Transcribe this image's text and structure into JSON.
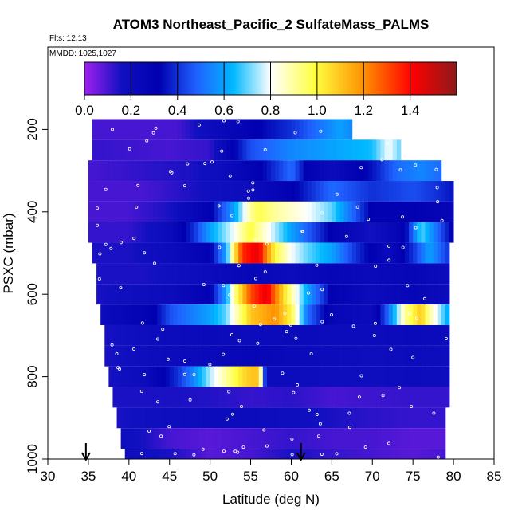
{
  "chart_data": {
    "type": "heatmap",
    "title": "ATOM3 Northeast_Pacific_2 SulfateMass_PALMS",
    "info_lines": [
      "Flts: 12,13",
      "MMDD: 1025,1027"
    ],
    "xlabel": "Latitude (deg N)",
    "ylabel": "PSXC (mbar)",
    "xlim": [
      30,
      85
    ],
    "ylim": [
      1000,
      0
    ],
    "x_ticks": [
      "30",
      "35",
      "40",
      "45",
      "50",
      "55",
      "60",
      "65",
      "70",
      "75",
      "80",
      "85"
    ],
    "y_ticks": [
      "200",
      "400",
      "600",
      "800",
      "1000"
    ],
    "colorbar": {
      "range": [
        0,
        1.6
      ],
      "ticks": [
        "0.0",
        "0.2",
        "0.4",
        "0.6",
        "0.8",
        "1.0",
        "1.2",
        "1.4"
      ]
    },
    "markers": [
      34.7,
      61.2
    ],
    "bin_height_mbar": 50,
    "layers": [
      {
        "p": 200,
        "x0": 35.5,
        "x1": 67.5,
        "pts": [
          [
            35.5,
            0.1
          ],
          [
            46,
            0.1
          ],
          [
            50,
            0.2
          ],
          [
            55,
            0.3
          ],
          [
            60,
            0.4
          ],
          [
            63,
            0.5
          ],
          [
            66,
            0.6
          ],
          [
            67.5,
            0.55
          ]
        ]
      },
      {
        "p": 250,
        "x0": 35.5,
        "x1": 73.5,
        "pts": [
          [
            35.5,
            0.12
          ],
          [
            45,
            0.1
          ],
          [
            50,
            0.12
          ],
          [
            52,
            0.25
          ],
          [
            55,
            0.45
          ],
          [
            60,
            0.55
          ],
          [
            65,
            0.6
          ],
          [
            70,
            0.65
          ],
          [
            72,
            0.8
          ],
          [
            73.5,
            0.7
          ]
        ]
      },
      {
        "p": 300,
        "x0": 35,
        "x1": 78.5,
        "pts": [
          [
            35,
            0.1
          ],
          [
            40,
            0.12
          ],
          [
            48,
            0.15
          ],
          [
            52,
            0.2
          ],
          [
            56,
            0.3
          ],
          [
            60,
            0.5
          ],
          [
            62,
            0.3
          ],
          [
            65,
            0.2
          ],
          [
            70,
            0.35
          ],
          [
            73,
            0.5
          ],
          [
            76,
            0.55
          ],
          [
            78.5,
            0.5
          ]
        ]
      },
      {
        "p": 350,
        "x0": 35,
        "x1": 80,
        "pts": [
          [
            35,
            0.1
          ],
          [
            42,
            0.1
          ],
          [
            48,
            0.15
          ],
          [
            55,
            0.2
          ],
          [
            60,
            0.3
          ],
          [
            65,
            0.5
          ],
          [
            70,
            0.4
          ],
          [
            75,
            0.45
          ],
          [
            78,
            0.4
          ],
          [
            80,
            0.35
          ]
        ]
      },
      {
        "p": 400,
        "x0": 35,
        "x1": 80,
        "pts": [
          [
            35,
            0.1
          ],
          [
            40,
            0.1
          ],
          [
            45,
            0.15
          ],
          [
            50,
            0.3
          ],
          [
            53,
            0.6
          ],
          [
            55,
            0.9
          ],
          [
            56,
            0.98
          ],
          [
            58,
            0.9
          ],
          [
            62,
            0.8
          ],
          [
            65,
            0.7
          ],
          [
            70,
            0.3
          ],
          [
            75,
            0.3
          ],
          [
            80,
            0.25
          ]
        ]
      },
      {
        "p": 450,
        "x0": 35,
        "x1": 80,
        "pts": [
          [
            35,
            0.12
          ],
          [
            40,
            0.12
          ],
          [
            45,
            0.2
          ],
          [
            48,
            0.4
          ],
          [
            50,
            0.6
          ],
          [
            53,
            0.8
          ],
          [
            55,
            1.0
          ],
          [
            56,
            0.9
          ],
          [
            60,
            0.6
          ],
          [
            65,
            0.3
          ],
          [
            70,
            0.15
          ],
          [
            74,
            0.3
          ],
          [
            76,
            0.7
          ],
          [
            78,
            0.5
          ],
          [
            80,
            0.3
          ]
        ]
      },
      {
        "p": 500,
        "x0": 35.5,
        "x1": 79.5,
        "pts": [
          [
            35.5,
            0.15
          ],
          [
            40,
            0.15
          ],
          [
            45,
            0.2
          ],
          [
            50,
            0.3
          ],
          [
            52,
            0.6
          ],
          [
            53,
            1.0
          ],
          [
            54,
            1.35
          ],
          [
            56,
            1.45
          ],
          [
            57,
            1.2
          ],
          [
            58,
            1.0
          ],
          [
            60,
            0.8
          ],
          [
            62,
            0.7
          ],
          [
            65,
            0.6
          ],
          [
            68,
            0.4
          ],
          [
            72,
            0.2
          ],
          [
            75,
            0.4
          ],
          [
            77,
            0.6
          ],
          [
            79.5,
            0.4
          ]
        ]
      },
      {
        "p": 550,
        "x0": 36,
        "x1": 79.5,
        "pts": [
          [
            36,
            0.15
          ],
          [
            42,
            0.15
          ],
          [
            50,
            0.2
          ],
          [
            55,
            0.25
          ],
          [
            60,
            0.2
          ],
          [
            65,
            0.25
          ],
          [
            70,
            0.22
          ],
          [
            75,
            0.25
          ],
          [
            79.5,
            0.2
          ]
        ]
      },
      {
        "p": 600,
        "x0": 36,
        "x1": 79.5,
        "pts": [
          [
            36,
            0.15
          ],
          [
            45,
            0.2
          ],
          [
            50,
            0.3
          ],
          [
            52,
            0.6
          ],
          [
            53,
            0.9
          ],
          [
            55,
            1.3
          ],
          [
            57,
            1.45
          ],
          [
            58,
            1.25
          ],
          [
            60,
            0.9
          ],
          [
            62,
            0.6
          ],
          [
            65,
            0.3
          ],
          [
            70,
            0.2
          ],
          [
            75,
            0.25
          ],
          [
            79.5,
            0.2
          ]
        ]
      },
      {
        "p": 650,
        "x0": 36.5,
        "x1": 79.5,
        "pts": [
          [
            36.5,
            0.2
          ],
          [
            43,
            0.3
          ],
          [
            45,
            0.45
          ],
          [
            50,
            0.6
          ],
          [
            52,
            0.7
          ],
          [
            55,
            1.1
          ],
          [
            58,
            1.2
          ],
          [
            60,
            1.0
          ],
          [
            62,
            0.5
          ],
          [
            65,
            0.25
          ],
          [
            70,
            0.2
          ],
          [
            72,
            0.5
          ],
          [
            74,
            0.9
          ],
          [
            76,
            1.1
          ],
          [
            77,
            0.9
          ],
          [
            79.5,
            0.6
          ]
        ]
      },
      {
        "p": 700,
        "x0": 37,
        "x1": 79.5,
        "pts": [
          [
            37,
            0.15
          ],
          [
            45,
            0.2
          ],
          [
            50,
            0.22
          ],
          [
            55,
            0.2
          ],
          [
            60,
            0.22
          ],
          [
            65,
            0.2
          ],
          [
            70,
            0.2
          ],
          [
            75,
            0.22
          ],
          [
            79.5,
            0.2
          ]
        ]
      },
      {
        "p": 750,
        "x0": 37,
        "x1": 79.5,
        "pts": [
          [
            37,
            0.15
          ],
          [
            45,
            0.2
          ],
          [
            50,
            0.22
          ],
          [
            55,
            0.25
          ],
          [
            60,
            0.22
          ],
          [
            65,
            0.2
          ],
          [
            70,
            0.18
          ],
          [
            75,
            0.2
          ],
          [
            79.5,
            0.18
          ]
        ]
      },
      {
        "p": 800,
        "x0": 37.5,
        "x1": 79.5,
        "pts": [
          [
            37.5,
            0.15
          ],
          [
            42,
            0.2
          ],
          [
            44,
            0.3
          ],
          [
            46,
            0.4
          ],
          [
            48,
            0.55
          ],
          [
            50,
            0.75
          ],
          [
            52,
            0.9
          ],
          [
            54,
            1.05
          ],
          [
            55,
            1.1
          ],
          [
            56,
            1.1
          ],
          [
            57,
            0.2
          ],
          [
            60,
            0.2
          ],
          [
            65,
            0.18
          ],
          [
            70,
            0.18
          ],
          [
            75,
            0.2
          ],
          [
            79.5,
            0.18
          ]
        ]
      },
      {
        "p": 850,
        "x0": 38,
        "x1": 79.5,
        "pts": [
          [
            38,
            0.15
          ],
          [
            45,
            0.15
          ],
          [
            50,
            0.14
          ],
          [
            55,
            0.12
          ],
          [
            60,
            0.13
          ],
          [
            65,
            0.1
          ],
          [
            70,
            0.11
          ],
          [
            75,
            0.12
          ],
          [
            79.5,
            0.12
          ]
        ]
      },
      {
        "p": 900,
        "x0": 38.5,
        "x1": 79,
        "pts": [
          [
            38.5,
            0.15
          ],
          [
            45,
            0.18
          ],
          [
            50,
            0.2
          ],
          [
            55,
            0.2
          ],
          [
            60,
            0.18
          ],
          [
            65,
            0.15
          ],
          [
            70,
            0.13
          ],
          [
            75,
            0.12
          ],
          [
            79,
            0.12
          ]
        ]
      },
      {
        "p": 950,
        "x0": 39,
        "x1": 79,
        "pts": [
          [
            39,
            0.18
          ],
          [
            42,
            0.15
          ],
          [
            45,
            0.1
          ],
          [
            50,
            0.08
          ],
          [
            55,
            0.1
          ],
          [
            60,
            0.12
          ],
          [
            65,
            0.1
          ],
          [
            70,
            0.1
          ],
          [
            75,
            0.08
          ],
          [
            79,
            0.08
          ]
        ]
      },
      {
        "p": 1000,
        "x0": 39.5,
        "x1": 79,
        "pts": [
          [
            39.5,
            0.18
          ],
          [
            45,
            0.15
          ],
          [
            50,
            0.08
          ],
          [
            55,
            0.1
          ],
          [
            60,
            0.15
          ],
          [
            65,
            0.12
          ],
          [
            70,
            0.1
          ],
          [
            75,
            0.08
          ],
          [
            79,
            0.1
          ]
        ]
      }
    ]
  }
}
